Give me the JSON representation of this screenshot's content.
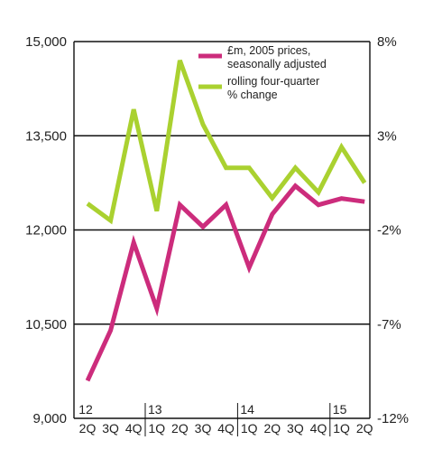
{
  "chart_data": {
    "type": "line",
    "x": [
      "2Q",
      "3Q",
      "4Q",
      "1Q",
      "2Q",
      "3Q",
      "4Q",
      "1Q",
      "2Q",
      "3Q",
      "4Q",
      "1Q",
      "2Q"
    ],
    "year_labels": [
      {
        "label": "12",
        "index": 0
      },
      {
        "label": "13",
        "index": 3
      },
      {
        "label": "14",
        "index": 7
      },
      {
        "label": "15",
        "index": 11
      }
    ],
    "y_left": {
      "ylim": [
        9000,
        15000
      ],
      "ticks": [
        15000,
        13500,
        12000,
        10500,
        9000
      ],
      "tick_labels": [
        "15,000",
        "13,500",
        "12,000",
        "10,500",
        "9,000"
      ]
    },
    "y_right": {
      "ylim": [
        -12,
        8
      ],
      "ticks": [
        8,
        3,
        -2,
        -7,
        -12
      ],
      "tick_labels": [
        "8%",
        "3%",
        "-2%",
        "-7%",
        "-12%"
      ]
    },
    "series": [
      {
        "name": "£m, 2005 prices, seasonally adjusted",
        "legend_lines": [
          "£m, 2005 prices,",
          "seasonally adjusted"
        ],
        "axis": "left",
        "color": "#cc2c7c",
        "values": [
          9600,
          10400,
          11800,
          10750,
          12400,
          12050,
          12400,
          11400,
          12250,
          12700,
          12400,
          12500,
          12450
        ]
      },
      {
        "name": "rolling four-quarter % change",
        "legend_lines": [
          "rolling four-quarter",
          "% change"
        ],
        "axis": "right",
        "color": "#aad130",
        "values": [
          -0.6,
          -1.5,
          4.4,
          -1.0,
          7.0,
          3.6,
          1.3,
          1.3,
          -0.3,
          1.3,
          0.0,
          2.4,
          0.5
        ]
      }
    ],
    "grid": true,
    "legend_position": "top-center"
  }
}
